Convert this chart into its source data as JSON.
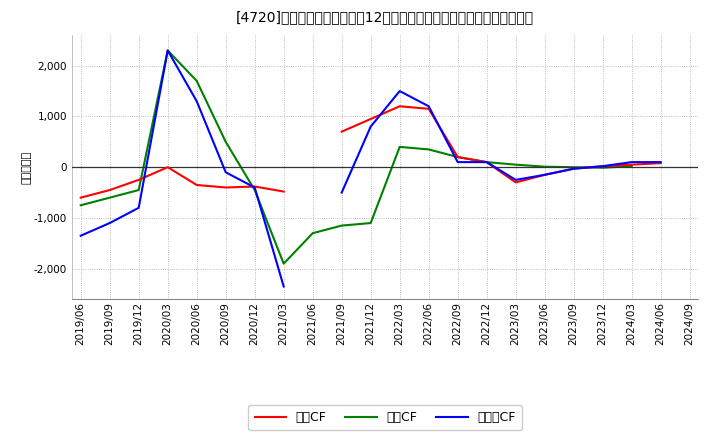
{
  "title": "[4720]　キャッシュフローの12か月移動合計の対前年同期増減額の推移",
  "ylabel": "（百万円）",
  "background_color": "#ffffff",
  "plot_bg_color": "#ffffff",
  "grid_color": "#aaaaaa",
  "ylim": [
    -2600,
    2600
  ],
  "yticks": [
    -2000,
    -1000,
    0,
    1000,
    2000
  ],
  "legend_labels": [
    "営業CF",
    "投資CF",
    "フリーCF"
  ],
  "legend_colors": [
    "#ff0000",
    "#008000",
    "#0000ff"
  ],
  "dates": [
    "2019/06",
    "2019/09",
    "2019/12",
    "2020/03",
    "2020/06",
    "2020/09",
    "2020/12",
    "2021/03",
    "2021/06",
    "2021/09",
    "2021/12",
    "2022/03",
    "2022/06",
    "2022/09",
    "2022/12",
    "2023/03",
    "2023/06",
    "2023/09",
    "2023/12",
    "2024/03",
    "2024/06",
    "2024/09"
  ],
  "operating_cf": [
    -600,
    -450,
    -250,
    0,
    -350,
    -400,
    -380,
    -480,
    null,
    700,
    950,
    1200,
    1150,
    200,
    100,
    -300,
    -150,
    -30,
    20,
    50,
    80,
    null
  ],
  "investing_cf": [
    -750,
    -600,
    -450,
    2300,
    1700,
    500,
    -450,
    -1900,
    -1300,
    -1150,
    -1100,
    400,
    350,
    200,
    100,
    50,
    10,
    0,
    -10,
    20,
    null,
    null
  ],
  "free_cf": [
    -1350,
    -1100,
    -800,
    2300,
    1300,
    -100,
    -400,
    -2350,
    null,
    -500,
    800,
    1500,
    1200,
    100,
    100,
    -250,
    -150,
    -30,
    20,
    100,
    100,
    null
  ]
}
